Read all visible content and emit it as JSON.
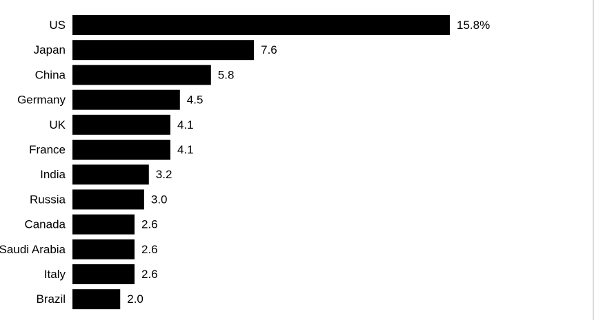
{
  "chart_data": {
    "type": "bar",
    "orientation": "horizontal",
    "categories": [
      "US",
      "Japan",
      "China",
      "Germany",
      "UK",
      "France",
      "India",
      "Russia",
      "Canada",
      "Saudi Arabia",
      "Italy",
      "Brazil"
    ],
    "values": [
      15.8,
      7.6,
      5.8,
      4.5,
      4.1,
      4.1,
      3.2,
      3.0,
      2.6,
      2.6,
      2.6,
      2.0
    ],
    "value_labels": [
      "15.8%",
      "7.6",
      "5.8",
      "4.5",
      "4.1",
      "4.1",
      "3.2",
      "3.0",
      "2.6",
      "2.6",
      "2.6",
      "2.0"
    ],
    "title": "",
    "xlabel": "",
    "ylabel": "",
    "xlim": [
      0,
      15.8
    ],
    "grid": false,
    "legend": "none",
    "colors": {
      "bar": "#000000",
      "text": "#000000",
      "background": "#ffffff"
    }
  }
}
